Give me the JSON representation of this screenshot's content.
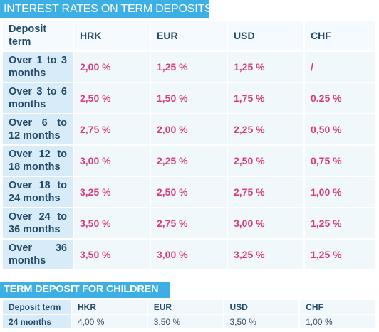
{
  "section1": {
    "title": "INTEREST RATES ON TERM DEPOSITS",
    "header": [
      "Deposit term",
      "HRK",
      "EUR",
      "USD",
      "CHF"
    ],
    "rows": [
      {
        "term": "Over 1 to 3 months",
        "values": [
          "2,00 %",
          "1,25 %",
          "1,25 %",
          "/"
        ]
      },
      {
        "term": "Over 3 to 6 months",
        "values": [
          "2,50 %",
          "1,50 %",
          "1,75 %",
          "0.25 %"
        ]
      },
      {
        "term": "Over 6 to 12 months",
        "values": [
          "2,75 %",
          "2,00 %",
          "2,25 %",
          "0,50 %"
        ]
      },
      {
        "term": "Over 12 to 18 months",
        "values": [
          "3,00 %",
          "2,25 %",
          "2,50 %",
          "0,75 %"
        ]
      },
      {
        "term": "Over 18 to 24 months",
        "values": [
          "3,25 %",
          "2,50 %",
          "2,75 %",
          "1,00 %"
        ]
      },
      {
        "term": "Over 24 to 36 months",
        "values": [
          "3,50 %",
          "2,75 %",
          "3,00 %",
          "1,25 %"
        ]
      },
      {
        "term": "Over 36 months",
        "values": [
          "3,50 %",
          "3,00 %",
          "3,25 %",
          "1,25 %"
        ]
      }
    ]
  },
  "section2": {
    "title": "TERM DEPOSIT FOR CHILDREN",
    "header": [
      "Deposit term",
      "HKR",
      "EUR",
      "USD",
      "CHF"
    ],
    "row": {
      "term": "24 months",
      "values": [
        "4,00 %",
        "3,50 %",
        "3,50 %",
        "1,00 %"
      ]
    }
  },
  "colors": {
    "title_bg": "#3cb0e4",
    "rate_text": "#d63c7c",
    "label_text": "#254b6a",
    "term_cell_bg": "#d7ecf8"
  }
}
